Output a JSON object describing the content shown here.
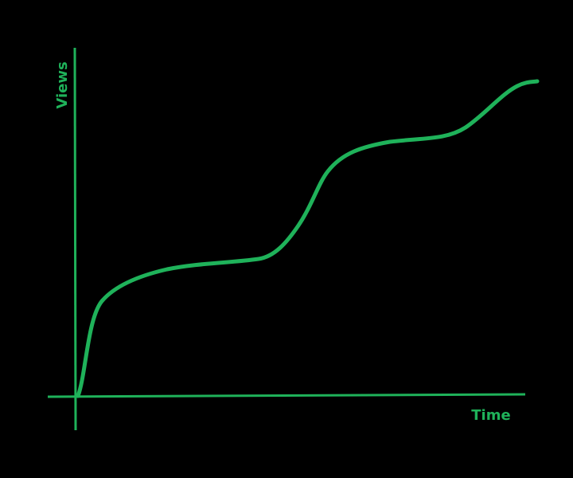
{
  "axes": {
    "y_label": "Views",
    "x_label": "Time"
  }
}
